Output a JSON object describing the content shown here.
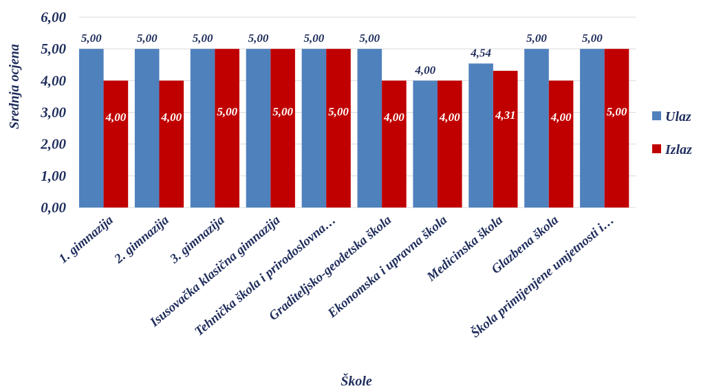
{
  "chart_data": {
    "type": "bar",
    "categories": [
      "1. gimnazija",
      "2. gimnazija",
      "3. gimnazija",
      "Isusovačka klasična gimnazija",
      "Tehnička škola  i prirodoslovna…",
      "Graditeljsko-geodetska škola",
      "Ekonomska i upravna škola",
      "Medicinska škola",
      "Glazbena škola",
      "Škola primijenjene umjetnosti i…"
    ],
    "series": [
      {
        "name": "Ulaz",
        "color": "#4f81bd",
        "values": [
          5.0,
          5.0,
          5.0,
          5.0,
          5.0,
          5.0,
          4.0,
          4.54,
          5.0,
          5.0
        ],
        "labels": [
          "5,00",
          "5,00",
          "5,00",
          "5,00",
          "5,00",
          "5,00",
          "4,00",
          "4,54",
          "5,00",
          "5,00"
        ]
      },
      {
        "name": "Izlaz",
        "color": "#c00000",
        "values": [
          4.0,
          4.0,
          5.0,
          5.0,
          5.0,
          4.0,
          4.0,
          4.31,
          4.0,
          5.0
        ],
        "labels": [
          "4,00",
          "4,00",
          "5,00",
          "5,00",
          "5,00",
          "4,00",
          "4,00",
          "4,31",
          "4,00",
          "5,00"
        ]
      }
    ],
    "yticks": [
      "0,00",
      "1,00",
      "2,00",
      "3,00",
      "4,00",
      "5,00",
      "6,00"
    ],
    "ylim": [
      0,
      6
    ],
    "ylabel": "Srednja ocjena",
    "xlabel": "Škole",
    "legend_position": "right",
    "label_color_dark": "#1f2d5c",
    "label_color_light": "#ffffff",
    "grid_color": "#d9d9d9"
  }
}
